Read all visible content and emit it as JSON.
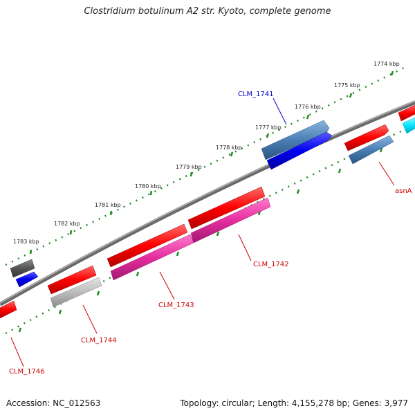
{
  "title": "Clostridium botulinum A2 str. Kyoto, complete genome",
  "footer": {
    "accession": "Accession: NC_012563",
    "summary": "Topology: circular; Length: 4,155,278 bp; Genes: 3,977"
  },
  "ruler": {
    "ticks": [
      "1774 kbp",
      "1775 kbp",
      "1776 kbp",
      "1777 kbp",
      "1778 kbp",
      "1779 kbp",
      "1780 kbp",
      "1781 kbp",
      "1782 kbp",
      "1783 kbp"
    ],
    "tick_color": "#1e8a1e"
  },
  "features": {
    "CLM_1741": {
      "label": "CLM_1741",
      "color": "#0000cc"
    },
    "asnA": {
      "label": "asnA",
      "color": "#cc0000"
    },
    "CLM_1742": {
      "label": "CLM_1742",
      "color": "#cc0000"
    },
    "CLM_1743": {
      "label": "CLM_1743",
      "color": "#cc0000"
    },
    "CLM_1744": {
      "label": "CLM_1744",
      "color": "#cc0000"
    },
    "CLM_1746": {
      "label": "CLM_1746",
      "color": "#cc0000"
    }
  },
  "colors": {
    "backbone": "#808080",
    "cds": "#ff0000",
    "gene_blue": "#0000ff",
    "gene_steel": "#4a7fb5",
    "gene_magenta": "#e62e9e",
    "gene_grey_dark": "#5a5a5a",
    "gene_grey_light": "#b8b8b8",
    "gene_cyan": "#00e5ff"
  }
}
